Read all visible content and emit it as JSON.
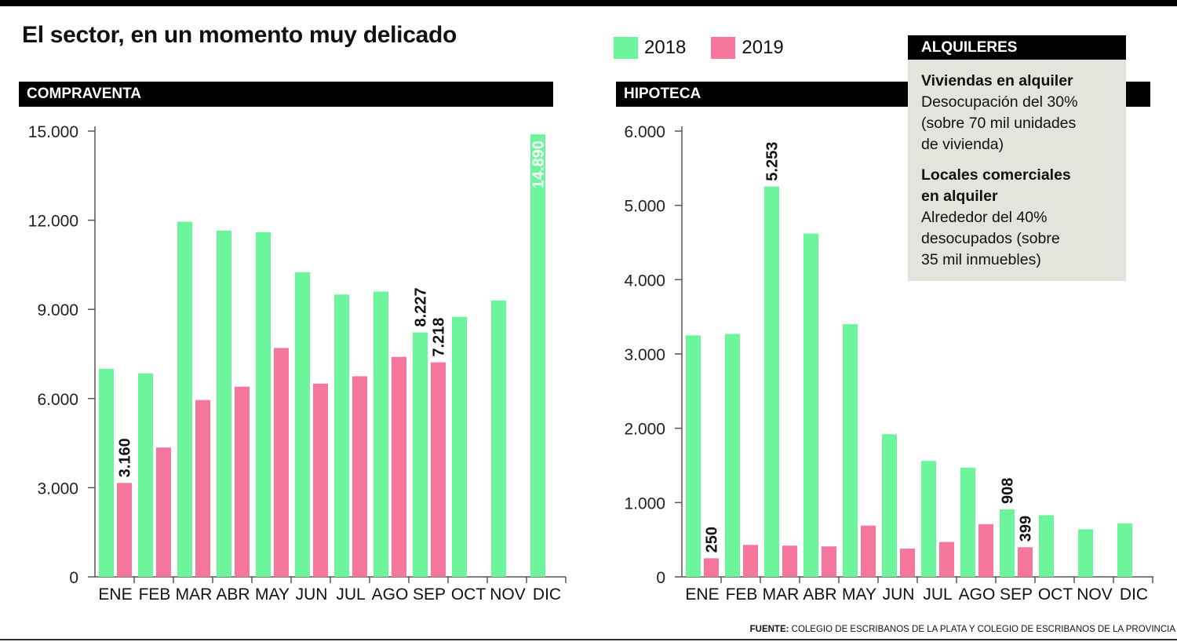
{
  "title": "El sector, en un momento muy delicado",
  "colors": {
    "s2018": "#6cf59a",
    "s2019": "#f7769e"
  },
  "legend": [
    {
      "label": "2018",
      "color": "#6cf59a"
    },
    {
      "label": "2019",
      "color": "#f7769e"
    }
  ],
  "alquileres": {
    "header": "ALQUILERES",
    "viviendas_title": "Viviendas en alquiler",
    "viviendas_text": [
      "Desocupación del 30%",
      "(sobre 70 mil unidades",
      "de vivienda)"
    ],
    "locales_title": [
      "Locales comerciales",
      "en alquiler"
    ],
    "locales_text": [
      "Alrededor del 40%",
      "desocupados (sobre",
      "35 mil inmuebles)"
    ]
  },
  "source": {
    "label": "FUENTE:",
    "text": " COLEGIO DE ESCRIBANOS DE LA PLATA Y COLEGIO DE ESCRIBANOS DE LA PROVINCIA"
  },
  "chart_data": [
    {
      "type": "bar",
      "title": "COMPRAVENTA",
      "categories": [
        "ENE",
        "FEB",
        "MAR",
        "ABR",
        "MAY",
        "JUN",
        "JUL",
        "AGO",
        "SEP",
        "OCT",
        "NOV",
        "DIC"
      ],
      "ylim": [
        0,
        15000
      ],
      "yticks": [
        0,
        3000,
        6000,
        9000,
        12000,
        15000
      ],
      "ytick_labels": [
        "0",
        "3.000",
        "6.000",
        "9.000",
        "12.000",
        "15.000"
      ],
      "series": [
        {
          "name": "2018",
          "values": [
            7000,
            6850,
            11950,
            11650,
            11600,
            10250,
            9500,
            9600,
            8227,
            8750,
            9300,
            14890
          ]
        },
        {
          "name": "2019",
          "values": [
            3160,
            4350,
            5950,
            6400,
            7700,
            6500,
            6750,
            7400,
            7218,
            null,
            null,
            null
          ]
        }
      ],
      "data_labels": [
        {
          "series": 1,
          "index": 0,
          "text": "3.160",
          "color": "#111111"
        },
        {
          "series": 0,
          "index": 8,
          "text": "8.227",
          "color": "#111111"
        },
        {
          "series": 1,
          "index": 8,
          "text": "7.218",
          "color": "#111111"
        },
        {
          "series": 0,
          "index": 11,
          "text": "14.890",
          "color": "#ffffff",
          "inside": true
        }
      ]
    },
    {
      "type": "bar",
      "title": "HIPOTECA",
      "categories": [
        "ENE",
        "FEB",
        "MAR",
        "ABR",
        "MAY",
        "JUN",
        "JUL",
        "AGO",
        "SEP",
        "OCT",
        "NOV",
        "DIC"
      ],
      "ylim": [
        0,
        6000
      ],
      "yticks": [
        0,
        1000,
        2000,
        3000,
        4000,
        5000,
        6000
      ],
      "ytick_labels": [
        "0",
        "1.000",
        "2.000",
        "3.000",
        "4.000",
        "5.000",
        "6.000"
      ],
      "series": [
        {
          "name": "2018",
          "values": [
            3250,
            3270,
            5253,
            4620,
            3400,
            1920,
            1560,
            1470,
            908,
            830,
            640,
            720
          ]
        },
        {
          "name": "2019",
          "values": [
            250,
            430,
            420,
            410,
            690,
            380,
            470,
            710,
            399,
            null,
            null,
            null
          ]
        }
      ],
      "data_labels": [
        {
          "series": 1,
          "index": 0,
          "text": "250",
          "color": "#111111"
        },
        {
          "series": 0,
          "index": 2,
          "text": "5.253",
          "color": "#111111"
        },
        {
          "series": 0,
          "index": 8,
          "text": "908",
          "color": "#111111"
        },
        {
          "series": 1,
          "index": 8,
          "text": "399",
          "color": "#111111"
        }
      ]
    }
  ]
}
